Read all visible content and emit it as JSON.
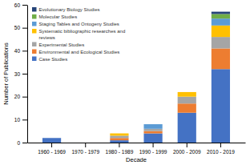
{
  "chart_data": {
    "type": "bar",
    "stacked": true,
    "grid": false,
    "legend": "upper left",
    "xlabel": "Decade",
    "ylabel": "Number of Publications",
    "categories": [
      "1960 - 1969",
      "1970 - 1979",
      "1980 - 1989",
      "1990 - 1999",
      "2000 - 2009",
      "2010 - 2019"
    ],
    "series": [
      {
        "name": "Case Studies",
        "color": "#4472C4",
        "values": [
          2,
          0,
          1,
          4,
          13,
          32
        ]
      },
      {
        "name": "Environmental and Ecological Studies",
        "color": "#ED7D31",
        "values": [
          0,
          0,
          1,
          1,
          4,
          9
        ]
      },
      {
        "name": "Experimental Studies",
        "color": "#A5A5A5",
        "values": [
          0,
          0,
          1,
          1,
          3,
          5
        ]
      },
      {
        "name": "Systematic bibliographic researches and\nreviews",
        "color": "#FFC000",
        "values": [
          0,
          0,
          1,
          0,
          2,
          5
        ]
      },
      {
        "name": "Staging Tables and Ontogeny Studies",
        "color": "#5B9BD5",
        "values": [
          0,
          0,
          0,
          2,
          0,
          3
        ]
      },
      {
        "name": "Molecular Studies",
        "color": "#70AD47",
        "values": [
          0,
          0,
          0,
          0,
          0,
          2
        ]
      },
      {
        "name": "Evolutionary Biology Studies",
        "color": "#264478",
        "values": [
          0,
          0,
          0,
          0,
          0,
          1
        ]
      }
    ],
    "ylim": [
      0,
      60
    ],
    "yticks": [
      0,
      10,
      20,
      30,
      40,
      50,
      60
    ]
  }
}
